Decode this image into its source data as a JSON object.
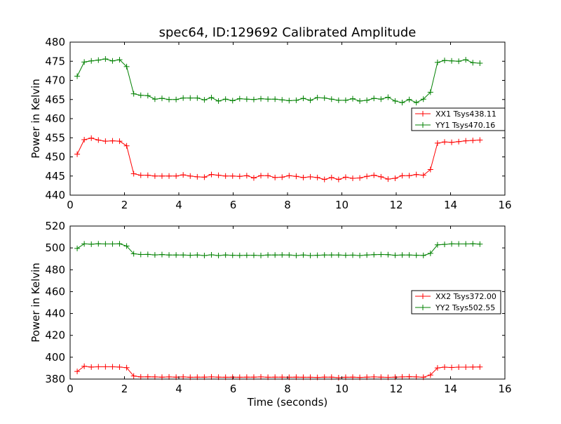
{
  "figure": {
    "title": "spec64, ID:129692 Calibrated Amplitude",
    "xlabel": "Time (seconds)"
  },
  "colors": {
    "xx": "#ff0000",
    "yy": "#008000"
  },
  "chart_data": [
    {
      "type": "line",
      "title": "spec64, ID:129692 Calibrated Amplitude",
      "xlabel": "",
      "ylabel": "Power in Kelvin",
      "xlim": [
        0,
        16
      ],
      "ylim": [
        440,
        480
      ],
      "xticks": [
        0,
        2,
        4,
        6,
        8,
        10,
        12,
        14,
        16
      ],
      "yticks": [
        440,
        445,
        450,
        455,
        460,
        465,
        470,
        475,
        480
      ],
      "legend_position": "right",
      "grid": false,
      "series": [
        {
          "name": "XX1 Tsys438.11",
          "color": "#ff0000",
          "marker": "+",
          "x": [
            0.26,
            0.52,
            0.78,
            1.04,
            1.3,
            1.56,
            1.82,
            2.08,
            2.34,
            2.6,
            2.86,
            3.12,
            3.38,
            3.64,
            3.9,
            4.16,
            4.42,
            4.68,
            4.94,
            5.2,
            5.46,
            5.72,
            5.98,
            6.24,
            6.5,
            6.76,
            7.02,
            7.28,
            7.54,
            7.8,
            8.06,
            8.32,
            8.58,
            8.84,
            9.1,
            9.36,
            9.62,
            9.88,
            10.14,
            10.4,
            10.66,
            10.92,
            11.18,
            11.44,
            11.7,
            11.96,
            12.22,
            12.48,
            12.74,
            13.0,
            13.26,
            13.52,
            13.78,
            14.04,
            14.3,
            14.56,
            14.82,
            15.08
          ],
          "y": [
            450.7,
            454.5,
            454.9,
            454.4,
            454.1,
            454.2,
            454.1,
            452.9,
            445.6,
            445.2,
            445.2,
            445.0,
            445.0,
            445.0,
            445.0,
            445.3,
            445.0,
            444.8,
            444.7,
            445.4,
            445.2,
            445.0,
            445.0,
            444.9,
            445.1,
            444.5,
            445.1,
            445.1,
            444.6,
            444.7,
            445.1,
            444.9,
            444.6,
            444.8,
            444.6,
            444.1,
            444.6,
            444.1,
            444.7,
            444.4,
            444.5,
            444.9,
            445.2,
            444.8,
            444.2,
            444.4,
            445.1,
            445.1,
            445.4,
            445.2,
            446.7,
            453.6,
            453.9,
            453.8,
            454.0,
            454.2,
            454.3,
            454.4
          ]
        },
        {
          "name": "YY1 Tsys470.16",
          "color": "#008000",
          "marker": "+",
          "x": [
            0.26,
            0.52,
            0.78,
            1.04,
            1.3,
            1.56,
            1.82,
            2.08,
            2.34,
            2.6,
            2.86,
            3.12,
            3.38,
            3.64,
            3.9,
            4.16,
            4.42,
            4.68,
            4.94,
            5.2,
            5.46,
            5.72,
            5.98,
            6.24,
            6.5,
            6.76,
            7.02,
            7.28,
            7.54,
            7.8,
            8.06,
            8.32,
            8.58,
            8.84,
            9.1,
            9.36,
            9.62,
            9.88,
            10.14,
            10.4,
            10.66,
            10.92,
            11.18,
            11.44,
            11.7,
            11.96,
            12.22,
            12.48,
            12.74,
            13.0,
            13.26,
            13.52,
            13.78,
            14.04,
            14.3,
            14.56,
            14.82,
            15.08
          ],
          "y": [
            471.1,
            474.8,
            475.1,
            475.3,
            475.6,
            475.1,
            475.4,
            473.6,
            466.5,
            466.1,
            466.0,
            465.1,
            465.3,
            465.0,
            465.0,
            465.4,
            465.4,
            465.4,
            464.9,
            465.5,
            464.6,
            465.1,
            464.7,
            465.2,
            465.1,
            465.0,
            465.2,
            465.1,
            465.1,
            464.9,
            464.7,
            464.8,
            465.3,
            464.8,
            465.5,
            465.4,
            465.1,
            464.8,
            464.8,
            465.2,
            464.6,
            464.8,
            465.3,
            465.1,
            465.6,
            464.6,
            464.2,
            465.0,
            464.2,
            465.1,
            466.9,
            474.7,
            475.2,
            475.1,
            475.0,
            475.4,
            474.6,
            474.5
          ]
        }
      ]
    },
    {
      "type": "line",
      "title": "",
      "xlabel": "Time (seconds)",
      "ylabel": "Power in Kelvin",
      "xlim": [
        0,
        16
      ],
      "ylim": [
        380,
        520
      ],
      "xticks": [
        0,
        2,
        4,
        6,
        8,
        10,
        12,
        14,
        16
      ],
      "yticks": [
        380,
        400,
        420,
        440,
        460,
        480,
        500,
        520
      ],
      "legend_position": "right",
      "grid": false,
      "series": [
        {
          "name": "XX2 Tsys372.00",
          "color": "#ff0000",
          "marker": "+",
          "x": [
            0.26,
            0.52,
            0.78,
            1.04,
            1.3,
            1.56,
            1.82,
            2.08,
            2.34,
            2.6,
            2.86,
            3.12,
            3.38,
            3.64,
            3.9,
            4.16,
            4.42,
            4.68,
            4.94,
            5.2,
            5.46,
            5.72,
            5.98,
            6.24,
            6.5,
            6.76,
            7.02,
            7.28,
            7.54,
            7.8,
            8.06,
            8.32,
            8.58,
            8.84,
            9.1,
            9.36,
            9.62,
            9.88,
            10.14,
            10.4,
            10.66,
            10.92,
            11.18,
            11.44,
            11.7,
            11.96,
            12.22,
            12.48,
            12.74,
            13.0,
            13.26,
            13.52,
            13.78,
            14.04,
            14.3,
            14.56,
            14.82,
            15.08
          ],
          "y": [
            387.0,
            391.7,
            391.0,
            391.2,
            391.2,
            391.2,
            391.0,
            390.4,
            382.8,
            382.0,
            382.1,
            382.0,
            381.8,
            382.0,
            381.8,
            382.0,
            381.7,
            381.8,
            381.8,
            382.0,
            381.8,
            381.7,
            381.8,
            381.7,
            381.8,
            381.8,
            382.0,
            381.7,
            381.8,
            381.8,
            381.7,
            381.8,
            381.7,
            381.7,
            381.5,
            381.8,
            381.8,
            381.3,
            381.7,
            381.8,
            381.5,
            381.8,
            382.0,
            381.8,
            381.6,
            381.8,
            382.0,
            382.2,
            382.0,
            381.7,
            383.7,
            390.2,
            390.9,
            390.6,
            390.9,
            390.9,
            391.0,
            391.1
          ]
        },
        {
          "name": "YY2 Tsys502.55",
          "color": "#008000",
          "marker": "+",
          "x": [
            0.26,
            0.52,
            0.78,
            1.04,
            1.3,
            1.56,
            1.82,
            2.08,
            2.34,
            2.6,
            2.86,
            3.12,
            3.38,
            3.64,
            3.9,
            4.16,
            4.42,
            4.68,
            4.94,
            5.2,
            5.46,
            5.72,
            5.98,
            6.24,
            6.5,
            6.76,
            7.02,
            7.28,
            7.54,
            7.8,
            8.06,
            8.32,
            8.58,
            8.84,
            9.1,
            9.36,
            9.62,
            9.88,
            10.14,
            10.4,
            10.66,
            10.92,
            11.18,
            11.44,
            11.7,
            11.96,
            12.22,
            12.48,
            12.74,
            13.0,
            13.26,
            13.52,
            13.78,
            14.04,
            14.3,
            14.56,
            14.82,
            15.08
          ],
          "y": [
            499.5,
            503.7,
            503.4,
            503.8,
            503.6,
            503.6,
            503.8,
            501.7,
            494.6,
            494.0,
            494.1,
            493.6,
            493.9,
            493.5,
            493.5,
            493.5,
            493.3,
            493.5,
            493.0,
            493.7,
            493.0,
            493.5,
            493.3,
            493.1,
            493.3,
            493.3,
            493.0,
            493.5,
            493.5,
            493.6,
            493.5,
            493.0,
            493.5,
            493.0,
            493.3,
            493.5,
            493.5,
            493.5,
            493.3,
            493.4,
            493.0,
            493.5,
            493.8,
            494.0,
            493.8,
            493.3,
            493.5,
            493.5,
            493.3,
            493.1,
            495.0,
            502.8,
            503.2,
            503.7,
            503.6,
            503.6,
            503.8,
            503.5
          ]
        }
      ]
    }
  ]
}
